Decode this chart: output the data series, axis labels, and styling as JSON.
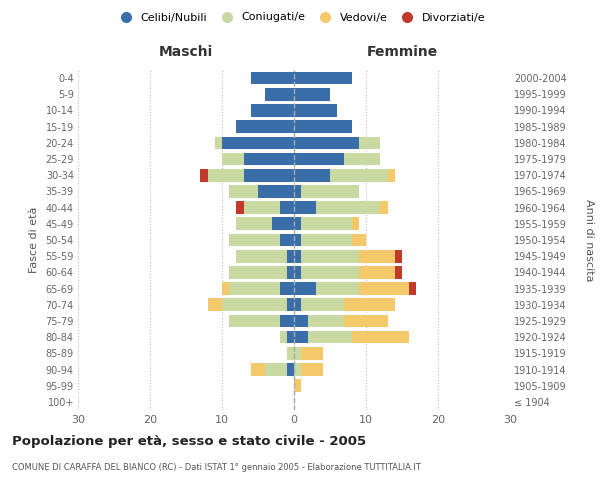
{
  "age_groups": [
    "100+",
    "95-99",
    "90-94",
    "85-89",
    "80-84",
    "75-79",
    "70-74",
    "65-69",
    "60-64",
    "55-59",
    "50-54",
    "45-49",
    "40-44",
    "35-39",
    "30-34",
    "25-29",
    "20-24",
    "15-19",
    "10-14",
    "5-9",
    "0-4"
  ],
  "birth_years": [
    "≤ 1904",
    "1905-1909",
    "1910-1914",
    "1915-1919",
    "1920-1924",
    "1925-1929",
    "1930-1934",
    "1935-1939",
    "1940-1944",
    "1945-1949",
    "1950-1954",
    "1955-1959",
    "1960-1964",
    "1965-1969",
    "1970-1974",
    "1975-1979",
    "1980-1984",
    "1985-1989",
    "1990-1994",
    "1995-1999",
    "2000-2004"
  ],
  "male": {
    "celibi": [
      0,
      0,
      1,
      0,
      1,
      2,
      1,
      2,
      1,
      1,
      2,
      3,
      2,
      5,
      7,
      7,
      10,
      8,
      6,
      4,
      6
    ],
    "coniugati": [
      0,
      0,
      3,
      1,
      1,
      7,
      9,
      7,
      8,
      7,
      7,
      5,
      5,
      4,
      5,
      3,
      1,
      0,
      0,
      0,
      0
    ],
    "vedovi": [
      0,
      0,
      2,
      0,
      0,
      0,
      2,
      1,
      0,
      0,
      0,
      0,
      0,
      0,
      0,
      0,
      0,
      0,
      0,
      0,
      0
    ],
    "divorziati": [
      0,
      0,
      0,
      0,
      0,
      0,
      0,
      0,
      0,
      0,
      0,
      0,
      1,
      0,
      1,
      0,
      0,
      0,
      0,
      0,
      0
    ]
  },
  "female": {
    "nubili": [
      0,
      0,
      0,
      0,
      2,
      2,
      1,
      3,
      1,
      1,
      1,
      1,
      3,
      1,
      5,
      7,
      9,
      8,
      6,
      5,
      8
    ],
    "coniugate": [
      0,
      0,
      1,
      1,
      6,
      5,
      6,
      6,
      8,
      8,
      7,
      7,
      9,
      8,
      8,
      5,
      3,
      0,
      0,
      0,
      0
    ],
    "vedove": [
      0,
      1,
      3,
      3,
      8,
      6,
      7,
      7,
      5,
      5,
      2,
      1,
      1,
      0,
      1,
      0,
      0,
      0,
      0,
      0,
      0
    ],
    "divorziate": [
      0,
      0,
      0,
      0,
      0,
      0,
      0,
      1,
      1,
      1,
      0,
      0,
      0,
      0,
      0,
      0,
      0,
      0,
      0,
      0,
      0
    ]
  },
  "colors": {
    "celibi": "#3a6ea8",
    "coniugati": "#c8d9a2",
    "vedovi": "#f5c96a",
    "divorziati": "#c0392b"
  },
  "xlim": 30,
  "title": "Popolazione per età, sesso e stato civile - 2005",
  "subtitle": "COMUNE DI CARAFFA DEL BIANCO (RC) - Dati ISTAT 1° gennaio 2005 - Elaborazione TUTTITALIA.IT",
  "ylabel_left": "Fasce di età",
  "ylabel_right": "Anni di nascita",
  "xlabel_male": "Maschi",
  "xlabel_female": "Femmine",
  "legend_labels": [
    "Celibi/Nubili",
    "Coniugati/e",
    "Vedovi/e",
    "Divorziati/e"
  ]
}
